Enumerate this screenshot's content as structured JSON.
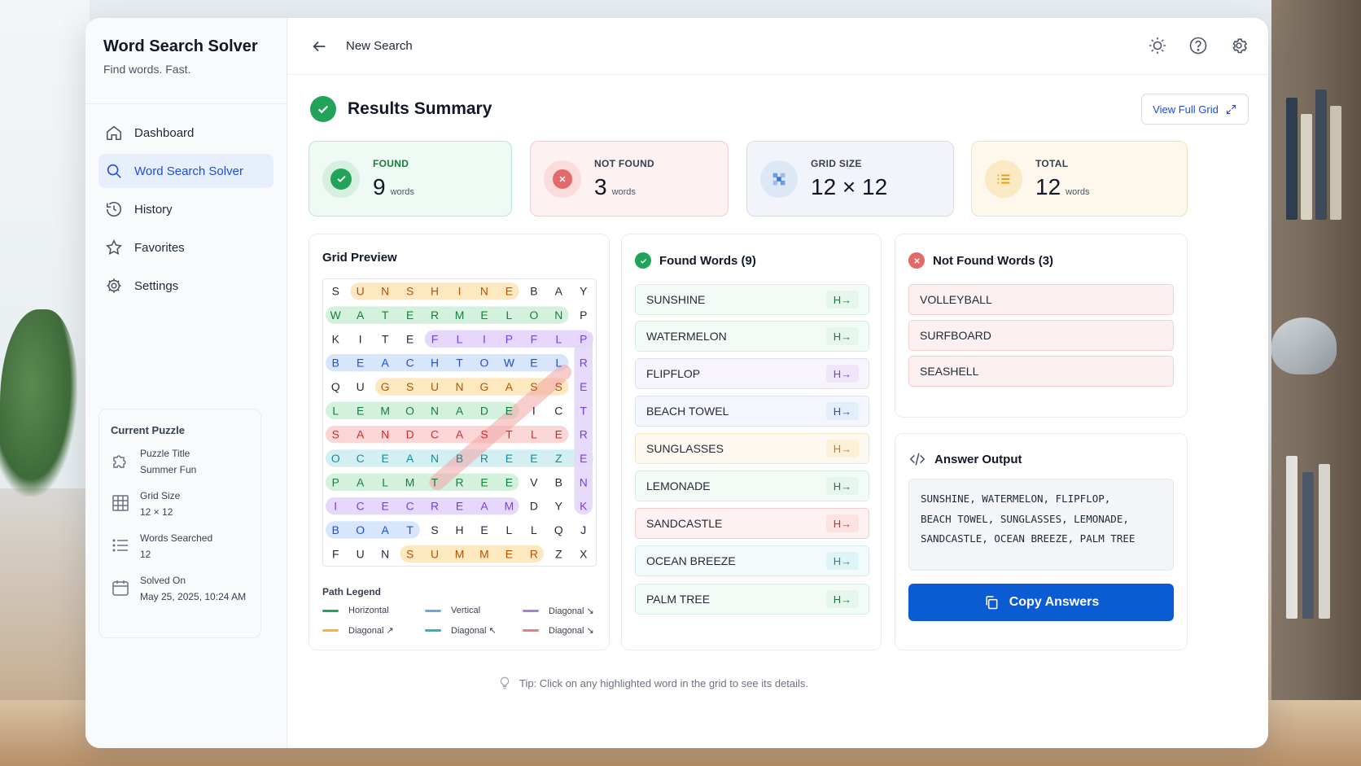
{
  "brand": {
    "title": "Word Search Solver",
    "subtitle": "Find words. Fast."
  },
  "nav": [
    {
      "label": "Dashboard",
      "icon": "home-icon",
      "active": false
    },
    {
      "label": "Word Search Solver",
      "icon": "search-icon",
      "active": true
    },
    {
      "label": "History",
      "icon": "history-icon",
      "active": false
    },
    {
      "label": "Favorites",
      "icon": "star-icon",
      "active": false
    },
    {
      "label": "Settings",
      "icon": "gear-icon",
      "active": false
    }
  ],
  "current_puzzle": {
    "title": "Current Puzzle",
    "rows": [
      {
        "label": "Puzzle Title",
        "value": "Summer Fun",
        "icon": "puzzle-icon"
      },
      {
        "label": "Grid Size",
        "value": "12 × 12",
        "icon": "grid-icon"
      },
      {
        "label": "Words Searched",
        "value": "12",
        "icon": "list-icon"
      },
      {
        "label": "Solved On",
        "value": "May 25, 2025, 10:24 AM",
        "icon": "calendar-icon"
      }
    ]
  },
  "topbar": {
    "title": "New Search"
  },
  "summary": {
    "title": "Results Summary",
    "view_full_grid": "View Full Grid"
  },
  "stats": {
    "found": {
      "label": "FOUND",
      "value": "9",
      "unit": "words"
    },
    "not_found": {
      "label": "NOT FOUND",
      "value": "3",
      "unit": "words"
    },
    "grid_size": {
      "label": "GRID SIZE",
      "value": "12 × 12"
    },
    "total": {
      "label": "TOTAL",
      "value": "12",
      "unit": "words"
    }
  },
  "grid_preview": {
    "title": "Grid Preview",
    "rows": [
      "SUNSHINEBAY",
      "WATERMELONP",
      "KITEFLIPFLP",
      "BEACHTOWELR",
      "QUGSUNGASSE",
      "LEMONADEICT",
      "SANDCASTLER",
      "OCEANBREEZE",
      "PALMTREEVBN",
      "ICECREAMDYK",
      "BOATSHELLQJ",
      "FUNSUMMERZX"
    ],
    "legend_title": "Path Legend",
    "legend": [
      {
        "label": "Horizontal",
        "color": "#22a35a"
      },
      {
        "label": "Vertical",
        "color": "#6aa6e8"
      },
      {
        "label": "Diagonal ↘",
        "color": "#a97de0"
      },
      {
        "label": "Diagonal ↗",
        "color": "#f5b731"
      },
      {
        "label": "Diagonal ↖",
        "color": "#2bb5c0"
      },
      {
        "label": "Diagonal ↘",
        "color": "#f07a7a"
      }
    ]
  },
  "found_words": {
    "title": "Found Words (9)",
    "items": [
      {
        "word": "SUNSHINE",
        "dir": "H→",
        "tone": "green"
      },
      {
        "word": "WATERMELON",
        "dir": "H→",
        "tone": "green"
      },
      {
        "word": "FLIPFLOP",
        "dir": "H→",
        "tone": "purple"
      },
      {
        "word": "BEACH TOWEL",
        "dir": "H→",
        "tone": "blue"
      },
      {
        "word": "SUNGLASSES",
        "dir": "H→",
        "tone": "orange"
      },
      {
        "word": "LEMONADE",
        "dir": "H→",
        "tone": "green"
      },
      {
        "word": "SANDCASTLE",
        "dir": "H→",
        "tone": "red"
      },
      {
        "word": "OCEAN BREEZE",
        "dir": "H→",
        "tone": "teal"
      },
      {
        "word": "PALM TREE",
        "dir": "H→",
        "tone": "green"
      }
    ]
  },
  "not_found_words": {
    "title": "Not Found Words (3)",
    "items": [
      "VOLLEYBALL",
      "SURFBOARD",
      "SEASHELL"
    ]
  },
  "answer_output": {
    "title": "Answer Output",
    "lines": [
      "SUNSHINE, WATERMELON, FLIPFLOP,",
      "BEACH TOWEL, SUNGLASSES, LEMONADE,",
      "SANDCASTLE, OCEAN BREEZE, PALM TREE"
    ],
    "copy_label": "Copy Answers"
  },
  "tip": "Tip: Click on any highlighted word in the grid to see its details."
}
